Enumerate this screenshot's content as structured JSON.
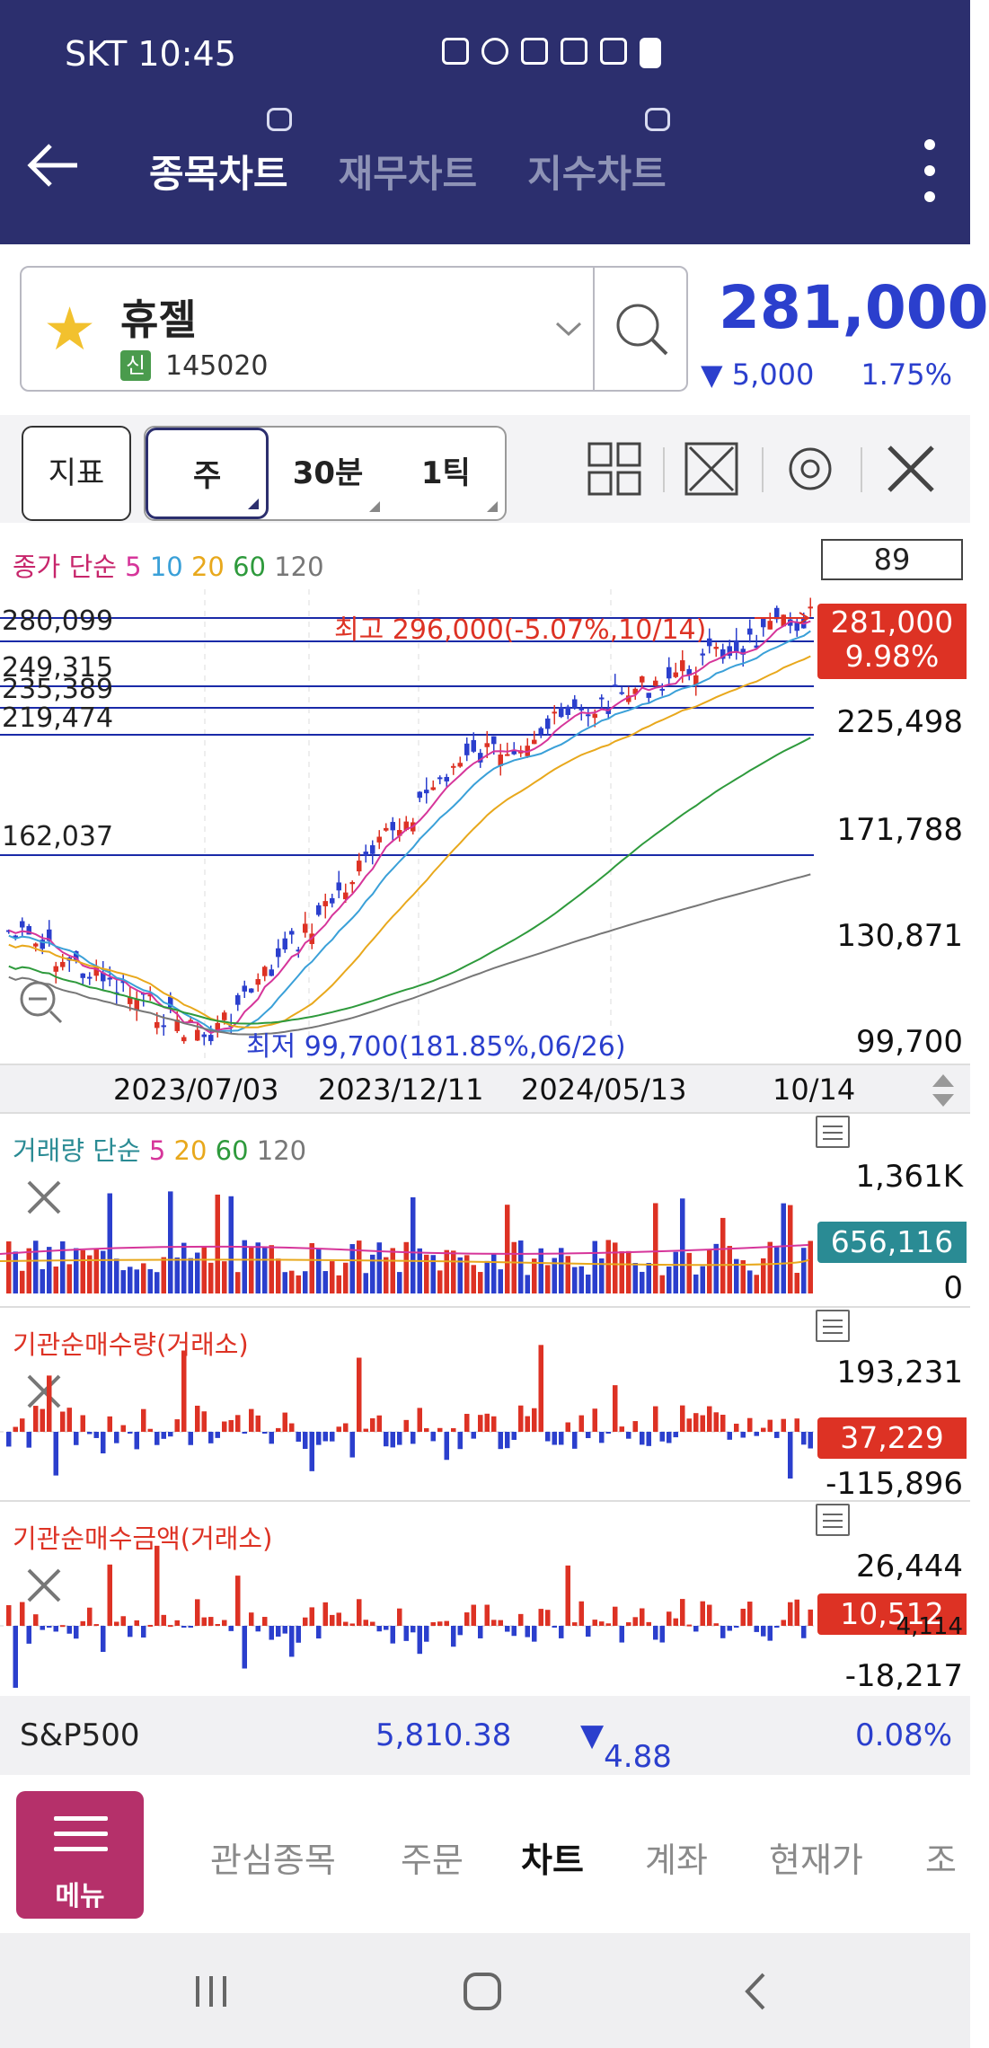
{
  "status_bar": {
    "carrier_time": "SKT 10:45"
  },
  "header": {
    "tabs": [
      {
        "label": "종목차트",
        "active": true
      },
      {
        "label": "재무차트",
        "active": false
      },
      {
        "label": "지수차트",
        "active": false
      }
    ]
  },
  "stock": {
    "name": "휴젤",
    "credit_badge": "신",
    "code": "145020",
    "price": "281,000",
    "change": "5,000",
    "change_pct": "1.75%"
  },
  "toolbar": {
    "indicator_label": "지표",
    "periods": [
      "주",
      "30분",
      "1틱"
    ],
    "selected_period": "주"
  },
  "price_chart": {
    "legend": {
      "prefix": "종가 단순",
      "ma": [
        "5",
        "10",
        "20",
        "60",
        "120"
      ]
    },
    "box_value": "89",
    "levels": [
      "280,099",
      "249,315",
      "235,389",
      "219,474",
      "162,037"
    ],
    "high_label": "최고 296,000(-5.07%,10/14)",
    "low_label": "최저 99,700(181.85%,06/26)",
    "current_tag": "281,000",
    "current_pct": "9.98%",
    "y_labels": [
      "225,498",
      "171,788",
      "130,871",
      "99,700"
    ],
    "dates": [
      "2023/07/03",
      "2023/12/11",
      "2024/05/13",
      "10/14"
    ]
  },
  "volume_chart": {
    "legend": {
      "prefix": "거래량 단순",
      "ma": [
        "5",
        "20",
        "60",
        "120"
      ]
    },
    "y_labels": [
      "1,361K",
      "0"
    ],
    "current_tag": "656,116"
  },
  "inst_qty_chart": {
    "title": "기관순매수량(거래소)",
    "y_labels": [
      "193,231",
      "-115,896"
    ],
    "current_tag": "37,229"
  },
  "inst_amt_chart": {
    "title": "기관순매수금액(거래소)",
    "y_labels": [
      "26,444",
      "4,114",
      "-18,217"
    ],
    "current_tag": "10,512"
  },
  "index_bar": {
    "name": "S&P500",
    "value": "5,810.38",
    "change": "4.88",
    "change_pct": "0.08%"
  },
  "bottom_nav": {
    "menu_label": "메뉴",
    "items": [
      "관심종목",
      "주문",
      "차트",
      "계좌",
      "현재가",
      "조"
    ],
    "active": "차트"
  },
  "colors": {
    "header_bg": "#2c2f6e",
    "up": "#dd3224",
    "down": "#2b3fcd",
    "ma5": "#d6359a",
    "ma10": "#3aa0d8",
    "ma20": "#e8a81c",
    "ma60": "#2e9a3c",
    "ma120": "#777777"
  }
}
